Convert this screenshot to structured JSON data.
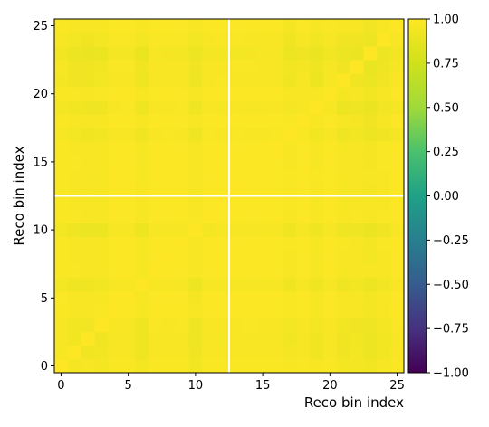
{
  "chart_data": {
    "type": "heatmap",
    "xlabel": "Reco bin index",
    "ylabel": "Reco bin index",
    "x_range": [
      -0.5,
      25.5
    ],
    "y_range": [
      -0.5,
      25.5
    ],
    "x_ticks": [
      "0",
      "5",
      "10",
      "15",
      "20",
      "25"
    ],
    "y_ticks": [
      "0",
      "5",
      "10",
      "15",
      "20",
      "25"
    ],
    "colormap": "viridis",
    "color_range": [
      -1.0,
      1.0
    ],
    "colorbar_ticks": [
      "1.00",
      "0.75",
      "0.50",
      "0.25",
      "0.00",
      "−0.25",
      "−0.50",
      "−0.75",
      "−1.00"
    ],
    "block_divider_at": 12.5,
    "bin_count": 26,
    "description_of_values": "correlation matrix, values between about 0.82 and 1.00; 1.00 on the diagonal",
    "min_value_estimate": 0.82
  }
}
